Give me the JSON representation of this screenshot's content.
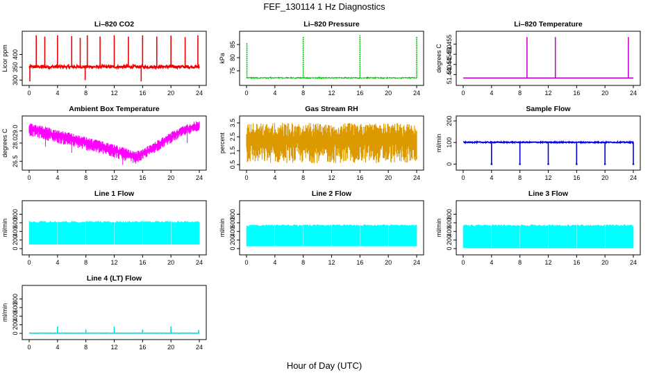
{
  "figure": {
    "title": "FEF_130114  1 Hz Diagnostics",
    "xlabel": "Hour of Day (UTC)"
  },
  "chart_data": [
    {
      "type": "line",
      "title": "Li–820 CO2",
      "ylabel": "Licor ppm",
      "color": "#ee0000",
      "xlim": [
        0,
        24
      ],
      "xticks": [
        0,
        4,
        8,
        12,
        16,
        20,
        24
      ],
      "ylim": [
        290,
        480
      ],
      "yticks": [
        300,
        350,
        400
      ],
      "baseline": 352,
      "noise": 6,
      "style": "spikes",
      "events": [
        {
          "x": 0.1,
          "y": 295
        },
        {
          "x": 1,
          "y": 475
        },
        {
          "x": 2.2,
          "y": 470
        },
        {
          "x": 4,
          "y": 475
        },
        {
          "x": 6,
          "y": 472
        },
        {
          "x": 7.2,
          "y": 465
        },
        {
          "x": 7.9,
          "y": 300
        },
        {
          "x": 8.2,
          "y": 475
        },
        {
          "x": 10,
          "y": 470
        },
        {
          "x": 12,
          "y": 475
        },
        {
          "x": 14,
          "y": 470
        },
        {
          "x": 15.8,
          "y": 295
        },
        {
          "x": 16,
          "y": 475
        },
        {
          "x": 18,
          "y": 470
        },
        {
          "x": 20,
          "y": 474
        },
        {
          "x": 22,
          "y": 468
        },
        {
          "x": 23.8,
          "y": 475
        }
      ]
    },
    {
      "type": "line",
      "title": "Li–820 Pressure",
      "ylabel": "kPa",
      "color": "#00bb00",
      "xlim": [
        0,
        24
      ],
      "xticks": [
        0,
        4,
        8,
        12,
        16,
        20,
        24
      ],
      "ylim": [
        70.5,
        89
      ],
      "yticks": [
        75,
        80,
        85
      ],
      "baseline": 72.3,
      "noise": 0.15,
      "style": "dashed-spikes",
      "events": [
        {
          "x": 0.05,
          "y": 85.5
        },
        {
          "x": 8,
          "y": 88
        },
        {
          "x": 16,
          "y": 88.5
        },
        {
          "x": 24,
          "y": 88
        }
      ]
    },
    {
      "type": "line",
      "title": "Li–820 Temperature",
      "ylabel": "degrees C",
      "color": "#cc00cc",
      "xlim": [
        0,
        24
      ],
      "xticks": [
        0,
        4,
        8,
        12,
        16,
        20,
        24
      ],
      "ylim": [
        51.436,
        51.46
      ],
      "yticks": [
        51.44,
        51.445,
        51.45,
        51.455
      ],
      "ytick_labels": [
        "51.440",
        "51.445",
        "51.450",
        "51.455"
      ],
      "baseline": 51.4383,
      "noise": 0,
      "style": "spikes",
      "events": [
        {
          "x": 9,
          "y": 51.4585
        },
        {
          "x": 13,
          "y": 51.4585
        },
        {
          "x": 23.3,
          "y": 51.4585
        }
      ]
    },
    {
      "type": "line",
      "title": "Ambient Box Temperature",
      "ylabel": "degrees C",
      "color": "#ff00ff",
      "xlim": [
        0,
        24
      ],
      "xticks": [
        0,
        4,
        8,
        12,
        16,
        20,
        24
      ],
      "ylim": [
        26,
        30
      ],
      "yticks": [
        26.5,
        28.0,
        29.0
      ],
      "ytick_labels": [
        "26.5",
        "28.0",
        "29.0"
      ],
      "style": "band",
      "x": [
        0,
        2,
        4,
        6,
        8,
        10,
        12,
        13,
        14,
        15,
        16,
        18,
        20,
        22,
        24
      ],
      "y_low": [
        28.6,
        28.3,
        28.0,
        27.7,
        27.4,
        27.1,
        26.8,
        26.6,
        26.45,
        26.3,
        26.6,
        27.3,
        28.0,
        28.6,
        29.0
      ],
      "y_high": [
        29.7,
        29.4,
        29.1,
        28.8,
        28.5,
        28.2,
        27.9,
        27.7,
        27.5,
        27.3,
        27.5,
        28.2,
        28.9,
        29.5,
        29.9
      ],
      "dips": [
        {
          "x": 2.3,
          "y": 27.7
        },
        {
          "x": 6,
          "y": 27.2
        },
        {
          "x": 13.2,
          "y": 26.2
        },
        {
          "x": 22.3,
          "y": 28.0
        }
      ]
    },
    {
      "type": "line",
      "title": "Gas Stream RH",
      "ylabel": "percent",
      "color": "#dd9900",
      "xlim": [
        0,
        24
      ],
      "xticks": [
        0,
        4,
        8,
        12,
        16,
        20,
        24
      ],
      "ylim": [
        0.3,
        3.8
      ],
      "yticks": [
        0.5,
        1.5,
        2.5,
        3.5
      ],
      "ytick_labels": [
        "0.5",
        "1.5",
        "2.5",
        "3.5"
      ],
      "style": "band",
      "x": [
        0,
        24
      ],
      "y_low": [
        0.6,
        0.6
      ],
      "y_high": [
        3.5,
        3.5
      ],
      "dips": []
    },
    {
      "type": "line",
      "title": "Sample Flow",
      "ylabel": "ml/min",
      "color": "#0000dd",
      "xlim": [
        0,
        24
      ],
      "xticks": [
        0,
        4,
        8,
        12,
        16,
        20,
        24
      ],
      "ylim": [
        -15,
        210
      ],
      "yticks": [
        0,
        100,
        200
      ],
      "baseline": 101,
      "noise": 2.5,
      "style": "drops",
      "events": [
        {
          "x": 4,
          "y": 0
        },
        {
          "x": 8,
          "y": 0
        },
        {
          "x": 12,
          "y": 0
        },
        {
          "x": 16,
          "y": 0
        },
        {
          "x": 20,
          "y": 0
        },
        {
          "x": 24,
          "y": 0
        }
      ]
    },
    {
      "type": "area",
      "title": "Line 1 Flow",
      "ylabel": "ml/min",
      "color": "#00ffff",
      "xlim": [
        0,
        24
      ],
      "xticks": [
        0,
        4,
        8,
        12,
        16,
        20,
        24
      ],
      "ylim": [
        -80,
        1050
      ],
      "yticks": [
        0,
        200,
        400,
        600,
        800
      ],
      "style": "fill",
      "fill_low": 100,
      "fill_high": 640,
      "gaps": [
        4,
        8,
        12,
        16,
        20
      ]
    },
    {
      "type": "area",
      "title": "Line 2 Flow",
      "ylabel": "ml/min",
      "color": "#00ffff",
      "xlim": [
        0,
        24
      ],
      "xticks": [
        0,
        4,
        8,
        12,
        16,
        20,
        24
      ],
      "ylim": [
        -80,
        1050
      ],
      "yticks": [
        0,
        200,
        400,
        600,
        800
      ],
      "style": "fill",
      "fill_low": 60,
      "fill_high": 560,
      "gaps": [
        4,
        8,
        12,
        16,
        20
      ]
    },
    {
      "type": "area",
      "title": "Line 3 Flow",
      "ylabel": "ml/min",
      "color": "#00ffff",
      "xlim": [
        0,
        24
      ],
      "xticks": [
        0,
        4,
        8,
        12,
        16,
        20,
        24
      ],
      "ylim": [
        -80,
        1050
      ],
      "yticks": [
        0,
        200,
        400,
        600,
        800
      ],
      "style": "fill",
      "fill_low": 20,
      "fill_high": 560,
      "gaps": [
        4,
        8,
        12,
        16,
        20
      ]
    },
    {
      "type": "line",
      "title": "Line 4 (LT) Flow",
      "ylabel": "ml/min",
      "color": "#00dddd",
      "xlim": [
        0,
        24
      ],
      "xticks": [
        0,
        4,
        8,
        12,
        16,
        20,
        24
      ],
      "ylim": [
        -80,
        1050
      ],
      "yticks": [
        0,
        200,
        400,
        600,
        800
      ],
      "baseline": 5,
      "noise": 3,
      "style": "spikes",
      "events": [
        {
          "x": 4,
          "y": 160
        },
        {
          "x": 8,
          "y": 90
        },
        {
          "x": 12,
          "y": 160
        },
        {
          "x": 16,
          "y": 90
        },
        {
          "x": 20,
          "y": 160
        },
        {
          "x": 23.9,
          "y": 80
        }
      ]
    }
  ]
}
